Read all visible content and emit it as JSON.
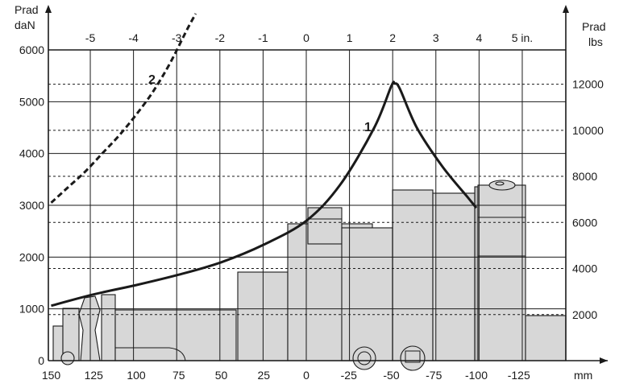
{
  "chart_data": {
    "type": "line",
    "x_bottom": {
      "unit_label": "mm",
      "ticks": [
        150,
        125,
        100,
        75,
        50,
        25,
        0,
        -25,
        -50,
        -75,
        -100,
        -125
      ],
      "range": [
        150,
        -150
      ]
    },
    "x_top": {
      "ticks": [
        "-5",
        "-4",
        "-3",
        "-2",
        "-1",
        "0",
        "1",
        "2",
        "3",
        "4",
        "5 in."
      ]
    },
    "y_left": {
      "label_line1": "Prad",
      "label_line2": "daN",
      "ticks": [
        0,
        1000,
        2000,
        3000,
        4000,
        5000,
        6000
      ],
      "range": [
        0,
        6000
      ]
    },
    "y_right": {
      "label_line1": "Prad",
      "label_line2": "lbs",
      "ticks": [
        2000,
        4000,
        6000,
        8000,
        10000,
        12000
      ]
    },
    "grid": true,
    "series": [
      {
        "name": "1",
        "style": "solid",
        "x": [
          150,
          125,
          100,
          75,
          50,
          25,
          0,
          -20,
          -40,
          -50,
          -52,
          -55,
          -65,
          -80,
          -95,
          -100
        ],
        "y": [
          1060,
          1280,
          1460,
          1660,
          1900,
          2240,
          2700,
          3400,
          4500,
          5300,
          5350,
          5250,
          4500,
          3750,
          3150,
          2950
        ]
      },
      {
        "name": "2",
        "style": "dashed",
        "x": [
          150,
          140,
          130,
          120,
          110,
          100,
          90,
          80,
          70,
          65
        ],
        "y": [
          3050,
          3350,
          3650,
          4000,
          4350,
          4750,
          5200,
          5750,
          6400,
          6700
        ]
      }
    ],
    "colors": {
      "ink": "#1a1a1a",
      "part_fill": "#d7d7d7"
    }
  }
}
